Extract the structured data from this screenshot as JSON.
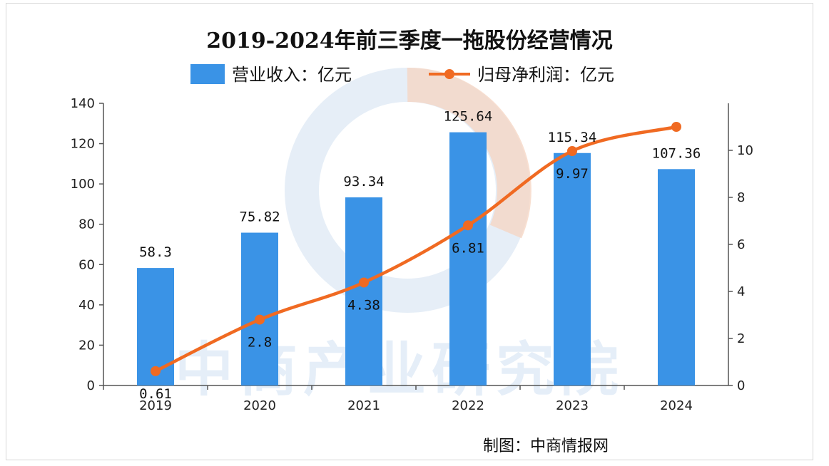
{
  "chart_data": {
    "type": "bar",
    "title": "2019-2024年前三季度一拖股份经营情况",
    "categories": [
      "2019",
      "2020",
      "2021",
      "2022",
      "2023",
      "2024"
    ],
    "series": [
      {
        "name": "营业收入：亿元",
        "type": "bar",
        "axis": "left",
        "values": [
          58.3,
          75.82,
          93.34,
          125.64,
          115.34,
          107.36
        ],
        "labels": [
          "58.3",
          "75.82",
          "93.34",
          "125.64",
          "115.34",
          "107.36"
        ]
      },
      {
        "name": "归母净利润：亿元",
        "type": "line",
        "axis": "right",
        "values": [
          0.61,
          2.8,
          4.38,
          6.81,
          9.97,
          11.0
        ],
        "labels": [
          "0.61",
          "2.8",
          "4.38",
          "6.81",
          "9.97",
          ""
        ]
      }
    ],
    "y_left": {
      "ylim": [
        0,
        140
      ],
      "ticks": [
        0,
        20,
        40,
        60,
        80,
        100,
        120,
        140
      ]
    },
    "y_right": {
      "ylim": [
        0,
        12
      ],
      "ticks": [
        0,
        2,
        4,
        6,
        8,
        10
      ]
    },
    "legend_position": "top-center",
    "grid": false,
    "colors": {
      "bar": "#3a93e6",
      "line": "#f06a22"
    }
  },
  "source_text": "制图：中商情报网",
  "watermark_text": "中商产业研究院"
}
